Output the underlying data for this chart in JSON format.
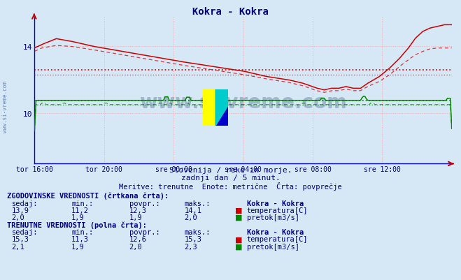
{
  "title": "Kokra - Kokra",
  "title_color": "#000080",
  "bg_color": "#d6e8f5",
  "grid_color": "#ffaaaa",
  "x_labels": [
    "tor 16:00",
    "tor 20:00",
    "sre 00:00",
    "sre 04:00",
    "sre 08:00",
    "sre 12:00"
  ],
  "x_ticks_pos": [
    0,
    48,
    96,
    144,
    192,
    240
  ],
  "n_points": 289,
  "y_min": 7.0,
  "y_max": 15.8,
  "y_ticks": [
    10,
    14
  ],
  "temp_color": "#cc0000",
  "flow_color": "#008800",
  "avg_temp_solid": 12.6,
  "avg_temp_dashed": 12.3,
  "avg_flow_solid_raw": 2.0,
  "avg_flow_dashed_raw": 1.9,
  "temp_scale_min": 7.0,
  "temp_scale_max": 15.8,
  "flow_scale_min": 0.5,
  "flow_scale_max": 4.0,
  "watermark_text": "www.si-vreme.com",
  "sub_text1": "Slovenija / reke in morje.",
  "sub_text2": "zadnji dan / 5 minut.",
  "sub_text3": "Meritve: trenutne  Enote: metrične  Črta: povprečje",
  "legend_title_hist": "ZGODOVINSKE VREDNOSTI (črtkana črta):",
  "legend_title_curr": "TRENUTNE VREDNOSTI (polna črta):",
  "hist_sedaj": "13,9",
  "hist_min": "11,2",
  "hist_povpr": "12,3",
  "hist_maks": "14,1",
  "curr_sedaj": "15,3",
  "curr_min": "11,3",
  "curr_povpr": "12,6",
  "curr_maks": "15,3",
  "flow_hist_sedaj": "2,0",
  "flow_hist_min": "1,9",
  "flow_hist_povpr": "1,9",
  "flow_hist_maks": "2,0",
  "flow_curr_sedaj": "2,1",
  "flow_curr_min": "1,9",
  "flow_curr_povpr": "2,0",
  "flow_curr_maks": "2,3",
  "station": "Kokra - Kokra"
}
